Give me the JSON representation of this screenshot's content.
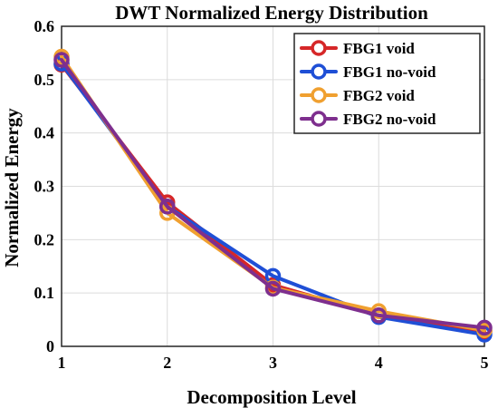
{
  "chart_data": {
    "type": "line",
    "title": "DWT Normalized Energy Distribution",
    "xlabel": "Decomposition Level",
    "ylabel": "Normalized Energy",
    "x": [
      1,
      2,
      3,
      4,
      5
    ],
    "xlim": [
      1,
      5
    ],
    "ylim": [
      0,
      0.6
    ],
    "xticks": [
      "1",
      "2",
      "3",
      "4",
      "5"
    ],
    "yticks": [
      "0",
      "0.1",
      "0.2",
      "0.3",
      "0.4",
      "0.5",
      "0.6"
    ],
    "grid": true,
    "legend_position": "top-right",
    "series": [
      {
        "name": "FBG1 void",
        "color": "#d62728",
        "values": [
          0.528,
          0.27,
          0.115,
          0.058,
          0.028
        ]
      },
      {
        "name": "FBG1 no-void",
        "color": "#1f4fd6",
        "values": [
          0.53,
          0.262,
          0.132,
          0.055,
          0.022
        ]
      },
      {
        "name": "FBG2 void",
        "color": "#f0a030",
        "values": [
          0.543,
          0.25,
          0.11,
          0.066,
          0.03
        ]
      },
      {
        "name": "FBG2 no-void",
        "color": "#7e2f8e",
        "values": [
          0.537,
          0.262,
          0.108,
          0.058,
          0.035
        ]
      }
    ]
  }
}
